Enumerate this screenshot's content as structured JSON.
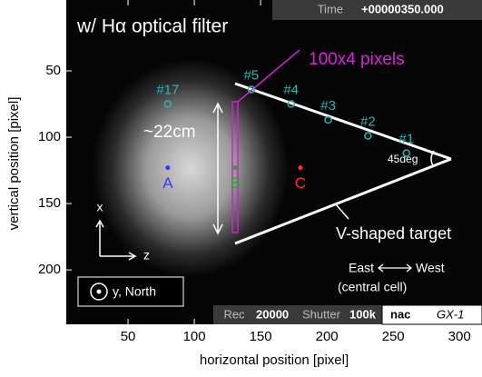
{
  "chart_data": {
    "type": "image",
    "title": "w/ Hα optical filter",
    "xlabel": "horizontal position [pixel]",
    "ylabel": "vertical position [pixel]",
    "xlim": [
      3.4,
      317
    ],
    "ylim": [
      241,
      -3.4
    ],
    "xticks": [
      50,
      100,
      150,
      200,
      250,
      300
    ],
    "yticks": [
      50,
      100,
      150,
      200
    ],
    "probes": {
      "color": "#2bb5b5",
      "names": [
        "#1",
        "#2",
        "#3",
        "#4",
        "#5",
        "#17"
      ],
      "x": [
        260,
        231,
        201,
        173,
        143,
        80
      ],
      "y": [
        112,
        99,
        87,
        75,
        64,
        75
      ]
    },
    "points": {
      "names": [
        "A",
        "B",
        "C"
      ],
      "colors": [
        "#2a3cff",
        "#33a02c",
        "#ff3030"
      ],
      "x": [
        80,
        131,
        180
      ],
      "y": [
        123,
        123,
        123
      ]
    },
    "annotations": {
      "box": "100x4 pixels",
      "size": "~22cm",
      "angle": "45deg",
      "target": "V-shaped target",
      "east": "East",
      "west": "West",
      "cell": "(central cell)",
      "axis_x": "x",
      "axis_z": "z",
      "axis_y": "y, North"
    },
    "status": {
      "time_label": "Time",
      "time": "+00000350.000",
      "rec_label": "Rec",
      "rec": "20000",
      "shutter_label": "Shutter",
      "shutter": "100k",
      "camera": "nac",
      "model": "GX-1"
    }
  }
}
